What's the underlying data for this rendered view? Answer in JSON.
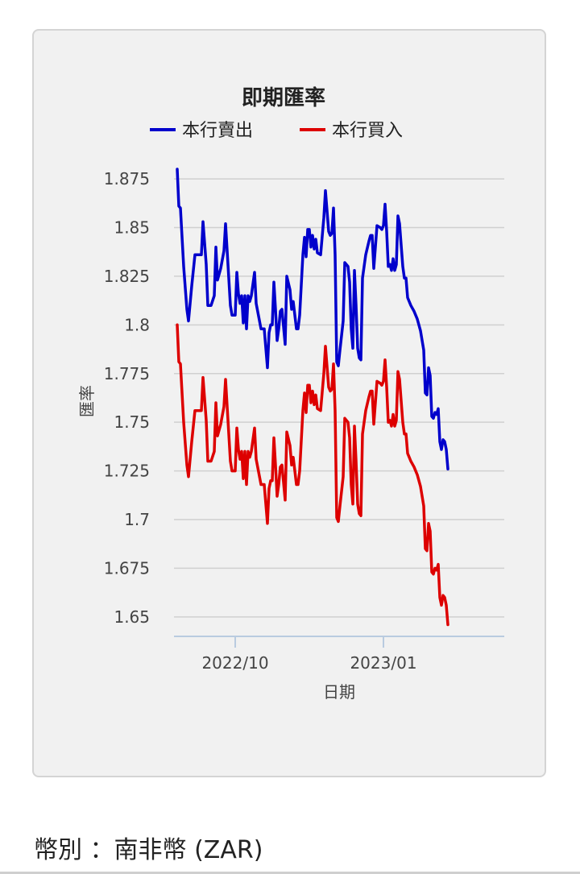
{
  "currency": {
    "text": "幣別 ：南非幣 (ZAR)"
  },
  "chart_data": {
    "type": "line",
    "title": "即期匯率",
    "xlabel": "日期",
    "ylabel": "匯率",
    "ylim": [
      1.64,
      1.88
    ],
    "yticks": [
      1.65,
      1.675,
      1.7,
      1.725,
      1.75,
      1.775,
      1.8,
      1.825,
      1.85,
      1.875
    ],
    "ytick_labels": [
      "1.65",
      "1.675",
      "1.7",
      "1.725",
      "1.75",
      "1.775",
      "1.8",
      "1.825",
      "1.85",
      "1.875"
    ],
    "xticks": [
      {
        "date": "2022-10-01",
        "label": "2022/10"
      },
      {
        "date": "2023-01-01",
        "label": "2023/01"
      }
    ],
    "xlim": [
      "2022-08-24",
      "2023-03-17"
    ],
    "grid": true,
    "legend": "top",
    "series": [
      {
        "name": "本行賣出",
        "color": "#0000cc",
        "points": [
          [
            "2022-08-26",
            1.88
          ],
          [
            "2022-08-27",
            1.861
          ],
          [
            "2022-08-28",
            1.86
          ],
          [
            "2022-08-30",
            1.83
          ],
          [
            "2022-09-01",
            1.808
          ],
          [
            "2022-09-02",
            1.802
          ],
          [
            "2022-09-04",
            1.82
          ],
          [
            "2022-09-06",
            1.836
          ],
          [
            "2022-09-08",
            1.836
          ],
          [
            "2022-09-10",
            1.836
          ],
          [
            "2022-09-11",
            1.853
          ],
          [
            "2022-09-13",
            1.831
          ],
          [
            "2022-09-14",
            1.81
          ],
          [
            "2022-09-16",
            1.81
          ],
          [
            "2022-09-18",
            1.815
          ],
          [
            "2022-09-19",
            1.84
          ],
          [
            "2022-09-20",
            1.823
          ],
          [
            "2022-09-22",
            1.829
          ],
          [
            "2022-09-24",
            1.838
          ],
          [
            "2022-09-25",
            1.852
          ],
          [
            "2022-09-26",
            1.838
          ],
          [
            "2022-09-28",
            1.81
          ],
          [
            "2022-09-29",
            1.805
          ],
          [
            "2022-10-01",
            1.805
          ],
          [
            "2022-10-02",
            1.827
          ],
          [
            "2022-10-03",
            1.816
          ],
          [
            "2022-10-04",
            1.811
          ],
          [
            "2022-10-05",
            1.815
          ],
          [
            "2022-10-06",
            1.801
          ],
          [
            "2022-10-07",
            1.815
          ],
          [
            "2022-10-08",
            1.798
          ],
          [
            "2022-10-09",
            1.815
          ],
          [
            "2022-10-10",
            1.812
          ],
          [
            "2022-10-11",
            1.815
          ],
          [
            "2022-10-13",
            1.827
          ],
          [
            "2022-10-14",
            1.811
          ],
          [
            "2022-10-17",
            1.798
          ],
          [
            "2022-10-19",
            1.798
          ],
          [
            "2022-10-20",
            1.788
          ],
          [
            "2022-10-21",
            1.778
          ],
          [
            "2022-10-22",
            1.796
          ],
          [
            "2022-10-23",
            1.8
          ],
          [
            "2022-10-24",
            1.8
          ],
          [
            "2022-10-25",
            1.822
          ],
          [
            "2022-10-26",
            1.808
          ],
          [
            "2022-10-27",
            1.792
          ],
          [
            "2022-10-28",
            1.798
          ],
          [
            "2022-10-29",
            1.807
          ],
          [
            "2022-10-30",
            1.808
          ],
          [
            "2022-11-01",
            1.79
          ],
          [
            "2022-11-02",
            1.825
          ],
          [
            "2022-11-04",
            1.818
          ],
          [
            "2022-11-05",
            1.808
          ],
          [
            "2022-11-06",
            1.812
          ],
          [
            "2022-11-08",
            1.798
          ],
          [
            "2022-11-09",
            1.798
          ],
          [
            "2022-11-10",
            1.805
          ],
          [
            "2022-11-12",
            1.836
          ],
          [
            "2022-11-13",
            1.845
          ],
          [
            "2022-11-14",
            1.835
          ],
          [
            "2022-11-15",
            1.849
          ],
          [
            "2022-11-16",
            1.849
          ],
          [
            "2022-11-17",
            1.84
          ],
          [
            "2022-11-18",
            1.846
          ],
          [
            "2022-11-19",
            1.839
          ],
          [
            "2022-11-20",
            1.844
          ],
          [
            "2022-11-21",
            1.837
          ],
          [
            "2022-11-23",
            1.836
          ],
          [
            "2022-11-25",
            1.855
          ],
          [
            "2022-11-26",
            1.869
          ],
          [
            "2022-11-28",
            1.848
          ],
          [
            "2022-11-29",
            1.846
          ],
          [
            "2022-11-30",
            1.847
          ],
          [
            "2022-12-01",
            1.86
          ],
          [
            "2022-12-02",
            1.836
          ],
          [
            "2022-12-03",
            1.781
          ],
          [
            "2022-12-04",
            1.779
          ],
          [
            "2022-12-05",
            1.787
          ],
          [
            "2022-12-07",
            1.802
          ],
          [
            "2022-12-08",
            1.832
          ],
          [
            "2022-12-10",
            1.83
          ],
          [
            "2022-12-11",
            1.822
          ],
          [
            "2022-12-12",
            1.798
          ],
          [
            "2022-12-13",
            1.788
          ],
          [
            "2022-12-14",
            1.828
          ],
          [
            "2022-12-15",
            1.81
          ],
          [
            "2022-12-16",
            1.788
          ],
          [
            "2022-12-17",
            1.783
          ],
          [
            "2022-12-18",
            1.782
          ],
          [
            "2022-12-19",
            1.824
          ],
          [
            "2022-12-21",
            1.836
          ],
          [
            "2022-12-23",
            1.843
          ],
          [
            "2022-12-24",
            1.846
          ],
          [
            "2022-12-25",
            1.846
          ],
          [
            "2022-12-26",
            1.829
          ],
          [
            "2022-12-27",
            1.84
          ],
          [
            "2022-12-28",
            1.851
          ],
          [
            "2022-12-30",
            1.85
          ],
          [
            "2022-12-31",
            1.849
          ],
          [
            "2023-01-01",
            1.851
          ],
          [
            "2023-01-02",
            1.862
          ],
          [
            "2023-01-03",
            1.848
          ],
          [
            "2023-01-04",
            1.83
          ],
          [
            "2023-01-05",
            1.831
          ],
          [
            "2023-01-06",
            1.828
          ],
          [
            "2023-01-07",
            1.834
          ],
          [
            "2023-01-08",
            1.828
          ],
          [
            "2023-01-09",
            1.831
          ],
          [
            "2023-01-10",
            1.856
          ],
          [
            "2023-01-11",
            1.852
          ],
          [
            "2023-01-13",
            1.83
          ],
          [
            "2023-01-14",
            1.824
          ],
          [
            "2023-01-15",
            1.824
          ],
          [
            "2023-01-16",
            1.814
          ],
          [
            "2023-01-18",
            1.81
          ],
          [
            "2023-01-20",
            1.807
          ],
          [
            "2023-01-22",
            1.803
          ],
          [
            "2023-01-24",
            1.797
          ],
          [
            "2023-01-26",
            1.787
          ],
          [
            "2023-01-27",
            1.765
          ],
          [
            "2023-01-28",
            1.764
          ],
          [
            "2023-01-29",
            1.778
          ],
          [
            "2023-01-30",
            1.774
          ],
          [
            "2023-01-31",
            1.753
          ],
          [
            "2023-02-01",
            1.752
          ],
          [
            "2023-02-02",
            1.755
          ],
          [
            "2023-02-03",
            1.754
          ],
          [
            "2023-02-04",
            1.757
          ],
          [
            "2023-02-05",
            1.74
          ],
          [
            "2023-02-06",
            1.736
          ],
          [
            "2023-02-07",
            1.741
          ],
          [
            "2023-02-08",
            1.74
          ],
          [
            "2023-02-09",
            1.736
          ],
          [
            "2023-02-10",
            1.726
          ]
        ]
      },
      {
        "name": "本行買入",
        "color": "#dd0000",
        "points": [
          [
            "2022-08-26",
            1.8
          ],
          [
            "2022-08-27",
            1.781
          ],
          [
            "2022-08-28",
            1.78
          ],
          [
            "2022-08-30",
            1.75
          ],
          [
            "2022-09-01",
            1.728
          ],
          [
            "2022-09-02",
            1.722
          ],
          [
            "2022-09-04",
            1.74
          ],
          [
            "2022-09-06",
            1.756
          ],
          [
            "2022-09-08",
            1.756
          ],
          [
            "2022-09-10",
            1.756
          ],
          [
            "2022-09-11",
            1.773
          ],
          [
            "2022-09-13",
            1.751
          ],
          [
            "2022-09-14",
            1.73
          ],
          [
            "2022-09-16",
            1.73
          ],
          [
            "2022-09-18",
            1.735
          ],
          [
            "2022-09-19",
            1.76
          ],
          [
            "2022-09-20",
            1.743
          ],
          [
            "2022-09-22",
            1.749
          ],
          [
            "2022-09-24",
            1.758
          ],
          [
            "2022-09-25",
            1.772
          ],
          [
            "2022-09-26",
            1.758
          ],
          [
            "2022-09-28",
            1.73
          ],
          [
            "2022-09-29",
            1.725
          ],
          [
            "2022-10-01",
            1.725
          ],
          [
            "2022-10-02",
            1.747
          ],
          [
            "2022-10-03",
            1.736
          ],
          [
            "2022-10-04",
            1.731
          ],
          [
            "2022-10-05",
            1.735
          ],
          [
            "2022-10-06",
            1.721
          ],
          [
            "2022-10-07",
            1.735
          ],
          [
            "2022-10-08",
            1.718
          ],
          [
            "2022-10-09",
            1.735
          ],
          [
            "2022-10-10",
            1.732
          ],
          [
            "2022-10-11",
            1.735
          ],
          [
            "2022-10-13",
            1.747
          ],
          [
            "2022-10-14",
            1.731
          ],
          [
            "2022-10-17",
            1.718
          ],
          [
            "2022-10-19",
            1.718
          ],
          [
            "2022-10-20",
            1.708
          ],
          [
            "2022-10-21",
            1.698
          ],
          [
            "2022-10-22",
            1.716
          ],
          [
            "2022-10-23",
            1.72
          ],
          [
            "2022-10-24",
            1.72
          ],
          [
            "2022-10-25",
            1.742
          ],
          [
            "2022-10-26",
            1.728
          ],
          [
            "2022-10-27",
            1.712
          ],
          [
            "2022-10-28",
            1.718
          ],
          [
            "2022-10-29",
            1.727
          ],
          [
            "2022-10-30",
            1.728
          ],
          [
            "2022-11-01",
            1.71
          ],
          [
            "2022-11-02",
            1.745
          ],
          [
            "2022-11-04",
            1.738
          ],
          [
            "2022-11-05",
            1.728
          ],
          [
            "2022-11-06",
            1.732
          ],
          [
            "2022-11-08",
            1.718
          ],
          [
            "2022-11-09",
            1.718
          ],
          [
            "2022-11-10",
            1.725
          ],
          [
            "2022-11-12",
            1.756
          ],
          [
            "2022-11-13",
            1.765
          ],
          [
            "2022-11-14",
            1.755
          ],
          [
            "2022-11-15",
            1.769
          ],
          [
            "2022-11-16",
            1.769
          ],
          [
            "2022-11-17",
            1.76
          ],
          [
            "2022-11-18",
            1.766
          ],
          [
            "2022-11-19",
            1.759
          ],
          [
            "2022-11-20",
            1.764
          ],
          [
            "2022-11-21",
            1.757
          ],
          [
            "2022-11-23",
            1.756
          ],
          [
            "2022-11-25",
            1.775
          ],
          [
            "2022-11-26",
            1.789
          ],
          [
            "2022-11-28",
            1.768
          ],
          [
            "2022-11-29",
            1.766
          ],
          [
            "2022-11-30",
            1.767
          ],
          [
            "2022-12-01",
            1.78
          ],
          [
            "2022-12-02",
            1.756
          ],
          [
            "2022-12-03",
            1.701
          ],
          [
            "2022-12-04",
            1.699
          ],
          [
            "2022-12-05",
            1.707
          ],
          [
            "2022-12-07",
            1.722
          ],
          [
            "2022-12-08",
            1.752
          ],
          [
            "2022-12-10",
            1.75
          ],
          [
            "2022-12-11",
            1.742
          ],
          [
            "2022-12-12",
            1.718
          ],
          [
            "2022-12-13",
            1.708
          ],
          [
            "2022-12-14",
            1.748
          ],
          [
            "2022-12-15",
            1.73
          ],
          [
            "2022-12-16",
            1.708
          ],
          [
            "2022-12-17",
            1.703
          ],
          [
            "2022-12-18",
            1.702
          ],
          [
            "2022-12-19",
            1.744
          ],
          [
            "2022-12-21",
            1.756
          ],
          [
            "2022-12-23",
            1.763
          ],
          [
            "2022-12-24",
            1.766
          ],
          [
            "2022-12-25",
            1.766
          ],
          [
            "2022-12-26",
            1.749
          ],
          [
            "2022-12-27",
            1.76
          ],
          [
            "2022-12-28",
            1.771
          ],
          [
            "2022-12-30",
            1.77
          ],
          [
            "2022-12-31",
            1.769
          ],
          [
            "2023-01-01",
            1.771
          ],
          [
            "2023-01-02",
            1.782
          ],
          [
            "2023-01-03",
            1.768
          ],
          [
            "2023-01-04",
            1.75
          ],
          [
            "2023-01-05",
            1.751
          ],
          [
            "2023-01-06",
            1.748
          ],
          [
            "2023-01-07",
            1.754
          ],
          [
            "2023-01-08",
            1.748
          ],
          [
            "2023-01-09",
            1.751
          ],
          [
            "2023-01-10",
            1.776
          ],
          [
            "2023-01-11",
            1.772
          ],
          [
            "2023-01-13",
            1.75
          ],
          [
            "2023-01-14",
            1.744
          ],
          [
            "2023-01-15",
            1.744
          ],
          [
            "2023-01-16",
            1.734
          ],
          [
            "2023-01-18",
            1.73
          ],
          [
            "2023-01-20",
            1.727
          ],
          [
            "2023-01-22",
            1.723
          ],
          [
            "2023-01-24",
            1.717
          ],
          [
            "2023-01-26",
            1.707
          ],
          [
            "2023-01-27",
            1.685
          ],
          [
            "2023-01-28",
            1.684
          ],
          [
            "2023-01-29",
            1.698
          ],
          [
            "2023-01-30",
            1.694
          ],
          [
            "2023-01-31",
            1.673
          ],
          [
            "2023-02-01",
            1.672
          ],
          [
            "2023-02-02",
            1.675
          ],
          [
            "2023-02-03",
            1.674
          ],
          [
            "2023-02-04",
            1.677
          ],
          [
            "2023-02-05",
            1.66
          ],
          [
            "2023-02-06",
            1.656
          ],
          [
            "2023-02-07",
            1.661
          ],
          [
            "2023-02-08",
            1.66
          ],
          [
            "2023-02-09",
            1.656
          ],
          [
            "2023-02-10",
            1.646
          ]
        ]
      }
    ]
  }
}
